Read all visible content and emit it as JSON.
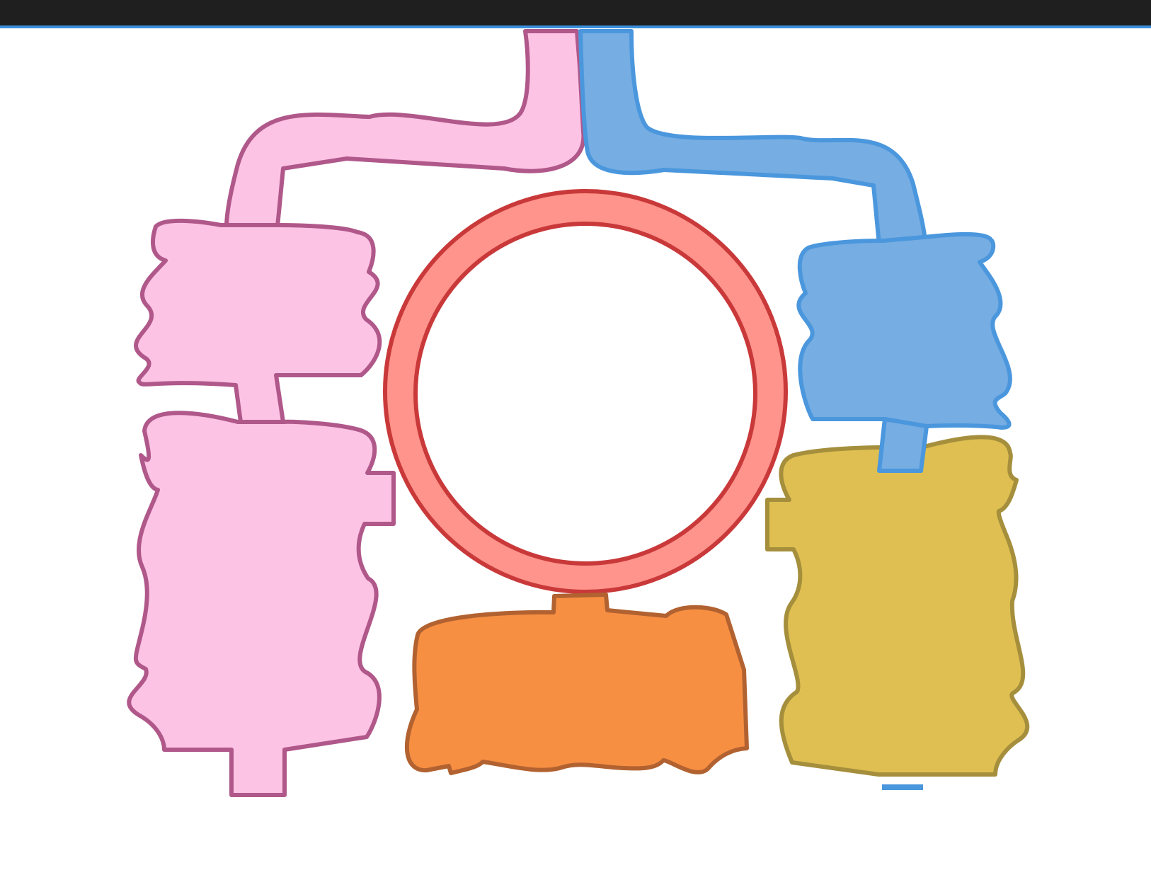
{
  "colors": {
    "topbar": "#1f1f1f",
    "topbar_accent": "#3b8fdc",
    "pink_fill": "#fdc3e5",
    "pink_stroke": "#b0588a",
    "blue_fill": "#76ade2",
    "blue_stroke": "#4b97dd",
    "red_fill": "#ff948c",
    "red_stroke": "#c9393a",
    "orange_fill": "#f78f43",
    "orange_stroke": "#b26230",
    "yellow_fill": "#dfbf52",
    "yellow_stroke": "#a58f3c"
  },
  "shapes": [
    {
      "name": "pink-top-connector",
      "color": "pink"
    },
    {
      "name": "blue-top-connector",
      "color": "blue"
    },
    {
      "name": "pink-left-upper-block",
      "color": "pink"
    },
    {
      "name": "pink-left-lower-block",
      "color": "pink"
    },
    {
      "name": "blue-right-upper-block",
      "color": "blue"
    },
    {
      "name": "yellow-right-lower-block",
      "color": "yellow"
    },
    {
      "name": "red-ring",
      "color": "red"
    },
    {
      "name": "orange-bottom-block",
      "color": "orange"
    },
    {
      "name": "blue-small-dash",
      "color": "blue"
    }
  ]
}
